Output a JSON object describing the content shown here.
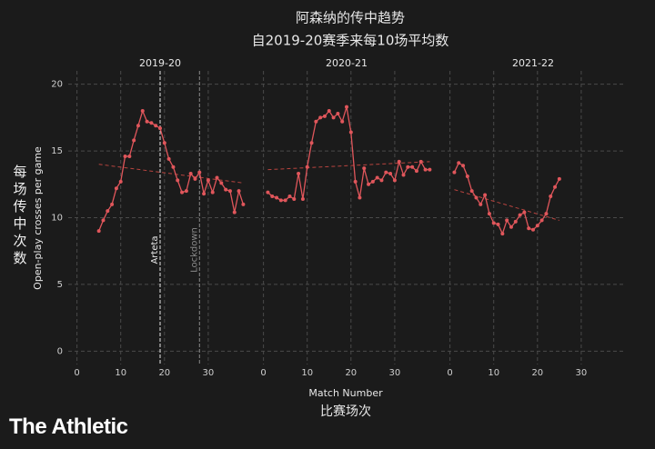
{
  "title": "阿森纳的传中趋势",
  "subtitle": "自2019-20赛季来每10场平均数",
  "ylabel": "Open-play crosses per game",
  "ylabel_cn": "每场传中次数",
  "xlabel": "Match Number",
  "xlabel_cn": "比赛场次",
  "brand": "The Athletic",
  "chart_data": [
    {
      "type": "line",
      "title": "2019-20",
      "color": "#e0565b",
      "grid": true,
      "xlim": [
        -2,
        40
      ],
      "xticks": [
        0,
        10,
        20,
        30
      ],
      "ylim": [
        -1,
        21
      ],
      "yticks": [
        0,
        5,
        10,
        15,
        20
      ],
      "x": [
        5,
        6,
        7,
        8,
        9,
        10,
        11,
        12,
        13,
        14,
        15,
        16,
        17,
        18,
        19,
        20,
        21,
        22,
        23,
        24,
        25,
        26,
        27,
        28,
        29,
        30,
        31,
        32,
        33,
        34,
        35,
        36,
        37,
        38
      ],
      "values": [
        9.0,
        9.8,
        10.5,
        11.0,
        12.2,
        12.7,
        14.6,
        14.6,
        15.8,
        16.9,
        18.0,
        17.2,
        17.1,
        16.9,
        16.7,
        15.6,
        14.4,
        13.8,
        12.8,
        11.9,
        12.0,
        13.3,
        12.9,
        13.4,
        11.8,
        12.8,
        11.9,
        13.0,
        12.6,
        12.1,
        12.0,
        10.4,
        12.0,
        11.0
      ],
      "trend": {
        "x": [
          5,
          38
        ],
        "values": [
          14.0,
          12.6
        ],
        "color": "#b8443f"
      },
      "annotations": [
        {
          "x": 19,
          "label": "Arteta",
          "color": "#e6e6e6"
        },
        {
          "x": 28,
          "label": "Lockdown",
          "color": "#8a8a8a"
        }
      ]
    },
    {
      "type": "line",
      "title": "2020-21",
      "color": "#e0565b",
      "grid": true,
      "xlim": [
        -2,
        40
      ],
      "xticks": [
        0,
        10,
        20,
        30
      ],
      "ylim": [
        -1,
        21
      ],
      "yticks": [
        0,
        5,
        10,
        15,
        20
      ],
      "x": [
        1,
        2,
        3,
        4,
        5,
        6,
        7,
        8,
        9,
        10,
        11,
        12,
        13,
        14,
        15,
        16,
        17,
        18,
        19,
        20,
        21,
        22,
        23,
        24,
        25,
        26,
        27,
        28,
        29,
        30,
        31,
        32,
        33,
        34,
        35,
        36,
        37,
        38
      ],
      "values": [
        11.9,
        11.6,
        11.5,
        11.3,
        11.3,
        11.6,
        11.4,
        13.3,
        11.4,
        13.8,
        15.6,
        17.2,
        17.5,
        17.6,
        18.0,
        17.5,
        17.8,
        17.2,
        18.3,
        16.4,
        12.7,
        11.5,
        13.7,
        12.5,
        12.7,
        13.0,
        12.8,
        13.4,
        13.3,
        12.8,
        14.2,
        13.2,
        13.8,
        13.8,
        13.5,
        14.2,
        13.6,
        13.6
      ],
      "trend": {
        "x": [
          1,
          38
        ],
        "values": [
          13.6,
          14.2
        ],
        "color": "#b8443f"
      }
    },
    {
      "type": "line",
      "title": "2021-22",
      "color": "#e0565b",
      "grid": true,
      "xlim": [
        -2,
        40
      ],
      "xticks": [
        0,
        10,
        20,
        30
      ],
      "ylim": [
        -1,
        21
      ],
      "yticks": [
        0,
        5,
        10,
        15,
        20
      ],
      "x": [
        1,
        2,
        3,
        4,
        5,
        6,
        7,
        8,
        9,
        10,
        11,
        12,
        13,
        14,
        15,
        16,
        17,
        18,
        19,
        20,
        21,
        22,
        23,
        24,
        25
      ],
      "values": [
        13.4,
        14.1,
        13.9,
        13.1,
        12.0,
        11.5,
        11.0,
        11.7,
        10.3,
        9.6,
        9.5,
        8.8,
        9.8,
        9.3,
        9.7,
        10.2,
        10.4,
        9.2,
        9.1,
        9.4,
        9.8,
        10.3,
        11.6,
        12.3,
        12.9
      ],
      "trend": {
        "x": [
          1,
          25
        ],
        "values": [
          12.1,
          9.8
        ],
        "color": "#b8443f"
      }
    }
  ]
}
